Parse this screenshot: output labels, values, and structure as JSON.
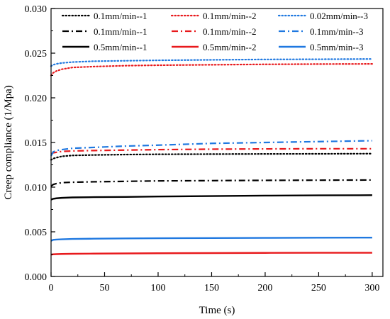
{
  "chart_data": {
    "type": "line",
    "title": "",
    "xlabel": "Time (s)",
    "ylabel": "Creep compliance (1/Mpa)",
    "xlim": [
      0,
      310
    ],
    "ylim": [
      0.0,
      0.03
    ],
    "xticks": [
      0,
      50,
      100,
      150,
      200,
      250,
      300
    ],
    "yticks": [
      0.0,
      0.005,
      0.01,
      0.015,
      0.02,
      0.025,
      0.03
    ],
    "xtick_labels": [
      "0",
      "50",
      "100",
      "150",
      "200",
      "250",
      "300"
    ],
    "ytick_labels": [
      "0.000",
      "0.005",
      "0.010",
      "0.015",
      "0.020",
      "0.025",
      "0.030"
    ],
    "grid": false,
    "legend_position": "top",
    "series": [
      {
        "name": "0.1mm/min--1",
        "color": "#000000",
        "style": "dotted",
        "x": [
          0,
          2,
          5,
          10,
          20,
          40,
          70,
          100,
          150,
          200,
          250,
          300
        ],
        "y": [
          0.01305,
          0.0132,
          0.0133,
          0.01345,
          0.01355,
          0.0136,
          0.01365,
          0.01368,
          0.0137,
          0.01372,
          0.01373,
          0.01375
        ]
      },
      {
        "name": "0.1mm/min--2",
        "color": "#e8191c",
        "style": "dotted",
        "x": [
          0,
          2,
          5,
          10,
          20,
          40,
          70,
          100,
          150,
          200,
          250,
          300
        ],
        "y": [
          0.0225,
          0.0228,
          0.023,
          0.0232,
          0.0234,
          0.0235,
          0.0236,
          0.02365,
          0.0237,
          0.02375,
          0.02378,
          0.0238
        ]
      },
      {
        "name": "0.02mm/min--3",
        "color": "#1f78e0",
        "style": "dotted",
        "x": [
          0,
          2,
          5,
          10,
          20,
          40,
          70,
          100,
          150,
          200,
          250,
          300
        ],
        "y": [
          0.02355,
          0.0237,
          0.0238,
          0.0239,
          0.024,
          0.0241,
          0.02415,
          0.0242,
          0.02425,
          0.0243,
          0.02432,
          0.02435
        ]
      },
      {
        "name": "0.1mm/min--1",
        "color": "#000000",
        "style": "dashdot",
        "x": [
          0,
          2,
          5,
          10,
          20,
          40,
          70,
          100,
          150,
          200,
          250,
          300
        ],
        "y": [
          0.0101,
          0.0103,
          0.0104,
          0.0105,
          0.01055,
          0.0106,
          0.01065,
          0.0107,
          0.01073,
          0.01076,
          0.01078,
          0.0108
        ]
      },
      {
        "name": "0.1mm/min--2",
        "color": "#e8191c",
        "style": "dashdot",
        "x": [
          0,
          2,
          5,
          10,
          20,
          40,
          70,
          100,
          150,
          200,
          250,
          300
        ],
        "y": [
          0.0137,
          0.01385,
          0.0139,
          0.014,
          0.01405,
          0.0141,
          0.01415,
          0.0142,
          0.01425,
          0.01428,
          0.0143,
          0.0143
        ]
      },
      {
        "name": "0.1mm/min--3",
        "color": "#1f78e0",
        "style": "dashdot",
        "x": [
          0,
          2,
          5,
          10,
          20,
          40,
          70,
          100,
          150,
          200,
          250,
          300
        ],
        "y": [
          0.0135,
          0.01395,
          0.0141,
          0.0142,
          0.01435,
          0.01445,
          0.0146,
          0.0147,
          0.0149,
          0.015,
          0.0151,
          0.0152
        ]
      },
      {
        "name": "0.5mm/min--1",
        "color": "#000000",
        "style": "solid",
        "x": [
          0,
          2,
          5,
          10,
          20,
          40,
          70,
          100,
          150,
          200,
          250,
          300
        ],
        "y": [
          0.0086,
          0.0087,
          0.00875,
          0.0088,
          0.00885,
          0.00888,
          0.0089,
          0.00895,
          0.009,
          0.00905,
          0.00908,
          0.0091
        ]
      },
      {
        "name": "0.5mm/min--2",
        "color": "#e8191c",
        "style": "solid",
        "x": [
          0,
          2,
          5,
          10,
          20,
          40,
          70,
          100,
          150,
          200,
          250,
          300
        ],
        "y": [
          0.00245,
          0.00248,
          0.0025,
          0.00252,
          0.00254,
          0.00256,
          0.00258,
          0.0026,
          0.00262,
          0.00264,
          0.00265,
          0.00265
        ]
      },
      {
        "name": "0.5mm/min--3",
        "color": "#1f78e0",
        "style": "solid",
        "x": [
          0,
          2,
          5,
          10,
          20,
          40,
          70,
          100,
          150,
          200,
          250,
          300
        ],
        "y": [
          0.004,
          0.0041,
          0.00413,
          0.00416,
          0.0042,
          0.00423,
          0.00426,
          0.00428,
          0.0043,
          0.00432,
          0.00434,
          0.00435
        ]
      }
    ]
  }
}
